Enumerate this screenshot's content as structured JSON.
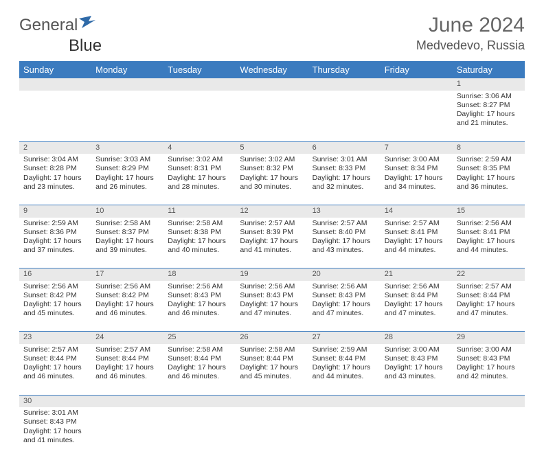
{
  "logo": {
    "text1": "General",
    "text2": "Blue"
  },
  "title": "June 2024",
  "location": "Medvedevo, Russia",
  "colors": {
    "header_bg": "#3b7bbf",
    "header_text": "#ffffff",
    "daynum_bg": "#e9e9e9",
    "border": "#3b7bbf",
    "title_color": "#666666",
    "body_text": "#333333"
  },
  "typography": {
    "title_fontsize": 30,
    "location_fontsize": 18,
    "dayheader_fontsize": 13,
    "cell_fontsize": 10.5
  },
  "day_headers": [
    "Sunday",
    "Monday",
    "Tuesday",
    "Wednesday",
    "Thursday",
    "Friday",
    "Saturday"
  ],
  "weeks": [
    [
      null,
      null,
      null,
      null,
      null,
      null,
      {
        "n": "1",
        "sr": "3:06 AM",
        "ss": "8:27 PM",
        "dl": "17 hours and 21 minutes."
      }
    ],
    [
      {
        "n": "2",
        "sr": "3:04 AM",
        "ss": "8:28 PM",
        "dl": "17 hours and 23 minutes."
      },
      {
        "n": "3",
        "sr": "3:03 AM",
        "ss": "8:29 PM",
        "dl": "17 hours and 26 minutes."
      },
      {
        "n": "4",
        "sr": "3:02 AM",
        "ss": "8:31 PM",
        "dl": "17 hours and 28 minutes."
      },
      {
        "n": "5",
        "sr": "3:02 AM",
        "ss": "8:32 PM",
        "dl": "17 hours and 30 minutes."
      },
      {
        "n": "6",
        "sr": "3:01 AM",
        "ss": "8:33 PM",
        "dl": "17 hours and 32 minutes."
      },
      {
        "n": "7",
        "sr": "3:00 AM",
        "ss": "8:34 PM",
        "dl": "17 hours and 34 minutes."
      },
      {
        "n": "8",
        "sr": "2:59 AM",
        "ss": "8:35 PM",
        "dl": "17 hours and 36 minutes."
      }
    ],
    [
      {
        "n": "9",
        "sr": "2:59 AM",
        "ss": "8:36 PM",
        "dl": "17 hours and 37 minutes."
      },
      {
        "n": "10",
        "sr": "2:58 AM",
        "ss": "8:37 PM",
        "dl": "17 hours and 39 minutes."
      },
      {
        "n": "11",
        "sr": "2:58 AM",
        "ss": "8:38 PM",
        "dl": "17 hours and 40 minutes."
      },
      {
        "n": "12",
        "sr": "2:57 AM",
        "ss": "8:39 PM",
        "dl": "17 hours and 41 minutes."
      },
      {
        "n": "13",
        "sr": "2:57 AM",
        "ss": "8:40 PM",
        "dl": "17 hours and 43 minutes."
      },
      {
        "n": "14",
        "sr": "2:57 AM",
        "ss": "8:41 PM",
        "dl": "17 hours and 44 minutes."
      },
      {
        "n": "15",
        "sr": "2:56 AM",
        "ss": "8:41 PM",
        "dl": "17 hours and 44 minutes."
      }
    ],
    [
      {
        "n": "16",
        "sr": "2:56 AM",
        "ss": "8:42 PM",
        "dl": "17 hours and 45 minutes."
      },
      {
        "n": "17",
        "sr": "2:56 AM",
        "ss": "8:42 PM",
        "dl": "17 hours and 46 minutes."
      },
      {
        "n": "18",
        "sr": "2:56 AM",
        "ss": "8:43 PM",
        "dl": "17 hours and 46 minutes."
      },
      {
        "n": "19",
        "sr": "2:56 AM",
        "ss": "8:43 PM",
        "dl": "17 hours and 47 minutes."
      },
      {
        "n": "20",
        "sr": "2:56 AM",
        "ss": "8:43 PM",
        "dl": "17 hours and 47 minutes."
      },
      {
        "n": "21",
        "sr": "2:56 AM",
        "ss": "8:44 PM",
        "dl": "17 hours and 47 minutes."
      },
      {
        "n": "22",
        "sr": "2:57 AM",
        "ss": "8:44 PM",
        "dl": "17 hours and 47 minutes."
      }
    ],
    [
      {
        "n": "23",
        "sr": "2:57 AM",
        "ss": "8:44 PM",
        "dl": "17 hours and 46 minutes."
      },
      {
        "n": "24",
        "sr": "2:57 AM",
        "ss": "8:44 PM",
        "dl": "17 hours and 46 minutes."
      },
      {
        "n": "25",
        "sr": "2:58 AM",
        "ss": "8:44 PM",
        "dl": "17 hours and 46 minutes."
      },
      {
        "n": "26",
        "sr": "2:58 AM",
        "ss": "8:44 PM",
        "dl": "17 hours and 45 minutes."
      },
      {
        "n": "27",
        "sr": "2:59 AM",
        "ss": "8:44 PM",
        "dl": "17 hours and 44 minutes."
      },
      {
        "n": "28",
        "sr": "3:00 AM",
        "ss": "8:43 PM",
        "dl": "17 hours and 43 minutes."
      },
      {
        "n": "29",
        "sr": "3:00 AM",
        "ss": "8:43 PM",
        "dl": "17 hours and 42 minutes."
      }
    ],
    [
      {
        "n": "30",
        "sr": "3:01 AM",
        "ss": "8:43 PM",
        "dl": "17 hours and 41 minutes."
      },
      null,
      null,
      null,
      null,
      null,
      null
    ]
  ],
  "labels": {
    "sunrise": "Sunrise:",
    "sunset": "Sunset:",
    "daylight": "Daylight:"
  }
}
